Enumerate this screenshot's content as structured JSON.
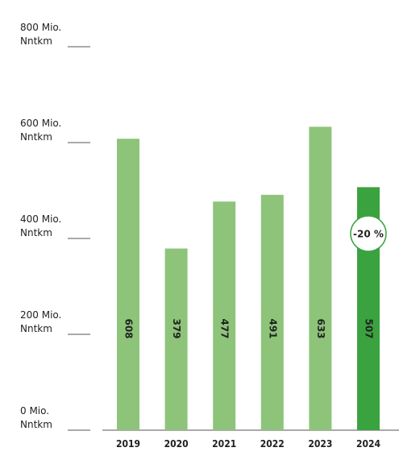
{
  "chart_data": {
    "type": "bar",
    "categories": [
      "2019",
      "2020",
      "2021",
      "2022",
      "2023",
      "2024"
    ],
    "values": [
      608,
      379,
      477,
      491,
      633,
      507
    ],
    "colors": [
      "#8dc47a",
      "#8dc47a",
      "#8dc47a",
      "#8dc47a",
      "#8dc47a",
      "#3aa33f"
    ],
    "ylim": [
      0,
      800
    ],
    "yticks": [
      {
        "value": 0,
        "label": "0 Mio. Nntkm"
      },
      {
        "value": 200,
        "label": "200 Mio. Nntkm"
      },
      {
        "value": 400,
        "label": "400 Mio. Nntkm"
      },
      {
        "value": 600,
        "label": "600 Mio. Nntkm"
      },
      {
        "value": 800,
        "label": "800 Mio. Nntkm"
      }
    ],
    "annotation": "-20 %"
  }
}
